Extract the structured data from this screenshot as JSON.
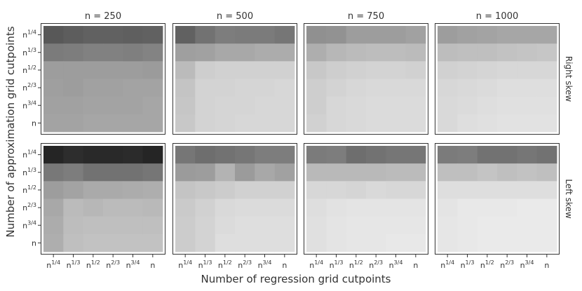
{
  "chart_data": {
    "type": "heatmap",
    "xlabel": "Number of regression grid cutpoints",
    "ylabel": "Number of approximation grid cutpoints",
    "x_ticks": [
      "n^1/4",
      "n^1/3",
      "n^1/2",
      "n^2/3",
      "n^3/4",
      "n"
    ],
    "y_ticks": [
      "n^1/4",
      "n^1/3",
      "n^1/2",
      "n^2/3",
      "n^3/4",
      "n"
    ],
    "columns": [
      "n = 250",
      "n = 500",
      "n = 750",
      "n = 1000"
    ],
    "rows": [
      "Right skew",
      "Left skew"
    ],
    "color_scale": {
      "light": "#f3f3f3",
      "dark": "#1c1c1c"
    },
    "panels": [
      {
        "column": "n = 250",
        "row": "Right skew",
        "values": [
          [
            0.72,
            0.7,
            0.68,
            0.68,
            0.69,
            0.68
          ],
          [
            0.56,
            0.55,
            0.53,
            0.53,
            0.54,
            0.52
          ],
          [
            0.4,
            0.4,
            0.4,
            0.4,
            0.4,
            0.41
          ],
          [
            0.39,
            0.4,
            0.38,
            0.38,
            0.37,
            0.37
          ],
          [
            0.38,
            0.38,
            0.37,
            0.37,
            0.37,
            0.36
          ],
          [
            0.37,
            0.37,
            0.36,
            0.36,
            0.36,
            0.36
          ]
        ]
      },
      {
        "column": "n = 500",
        "row": "Right skew",
        "values": [
          [
            0.68,
            0.6,
            0.55,
            0.56,
            0.56,
            0.58
          ],
          [
            0.39,
            0.38,
            0.35,
            0.35,
            0.33,
            0.33
          ],
          [
            0.26,
            0.17,
            0.16,
            0.16,
            0.16,
            0.16
          ],
          [
            0.22,
            0.15,
            0.15,
            0.14,
            0.14,
            0.13
          ],
          [
            0.21,
            0.15,
            0.14,
            0.14,
            0.13,
            0.13
          ],
          [
            0.2,
            0.15,
            0.14,
            0.13,
            0.13,
            0.13
          ]
        ]
      },
      {
        "column": "n = 750",
        "row": "Right skew",
        "values": [
          [
            0.46,
            0.45,
            0.4,
            0.4,
            0.4,
            0.38
          ],
          [
            0.32,
            0.28,
            0.26,
            0.25,
            0.25,
            0.26
          ],
          [
            0.2,
            0.17,
            0.16,
            0.15,
            0.15,
            0.16
          ],
          [
            0.17,
            0.15,
            0.13,
            0.12,
            0.12,
            0.12
          ],
          [
            0.17,
            0.13,
            0.12,
            0.11,
            0.11,
            0.11
          ],
          [
            0.16,
            0.13,
            0.12,
            0.11,
            0.11,
            0.11
          ]
        ]
      },
      {
        "column": "n = 1000",
        "row": "Right skew",
        "values": [
          [
            0.4,
            0.38,
            0.37,
            0.36,
            0.36,
            0.36
          ],
          [
            0.25,
            0.24,
            0.24,
            0.23,
            0.22,
            0.21
          ],
          [
            0.16,
            0.15,
            0.14,
            0.13,
            0.13,
            0.13
          ],
          [
            0.13,
            0.12,
            0.11,
            0.1,
            0.1,
            0.1
          ],
          [
            0.12,
            0.11,
            0.1,
            0.09,
            0.09,
            0.09
          ],
          [
            0.12,
            0.1,
            0.09,
            0.08,
            0.08,
            0.08
          ]
        ]
      },
      {
        "column": "n = 250",
        "row": "Left skew",
        "values": [
          [
            0.96,
            0.92,
            0.94,
            0.94,
            0.93,
            0.96
          ],
          [
            0.57,
            0.55,
            0.6,
            0.6,
            0.6,
            0.58
          ],
          [
            0.4,
            0.37,
            0.34,
            0.34,
            0.33,
            0.32
          ],
          [
            0.35,
            0.26,
            0.28,
            0.26,
            0.26,
            0.27
          ],
          [
            0.33,
            0.25,
            0.24,
            0.24,
            0.24,
            0.24
          ],
          [
            0.32,
            0.24,
            0.23,
            0.23,
            0.23,
            0.23
          ]
        ]
      },
      {
        "column": "n = 500",
        "row": "Left skew",
        "values": [
          [
            0.58,
            0.62,
            0.6,
            0.58,
            0.55,
            0.55
          ],
          [
            0.41,
            0.4,
            0.3,
            0.41,
            0.35,
            0.38
          ],
          [
            0.22,
            0.2,
            0.18,
            0.16,
            0.16,
            0.16
          ],
          [
            0.19,
            0.16,
            0.12,
            0.11,
            0.11,
            0.11
          ],
          [
            0.18,
            0.15,
            0.11,
            0.1,
            0.1,
            0.1
          ],
          [
            0.18,
            0.15,
            0.1,
            0.1,
            0.1,
            0.1
          ]
        ]
      },
      {
        "column": "n = 750",
        "row": "Left skew",
        "values": [
          [
            0.56,
            0.55,
            0.62,
            0.6,
            0.58,
            0.58
          ],
          [
            0.27,
            0.27,
            0.27,
            0.27,
            0.26,
            0.26
          ],
          [
            0.13,
            0.13,
            0.14,
            0.12,
            0.13,
            0.13
          ],
          [
            0.1,
            0.08,
            0.07,
            0.07,
            0.07,
            0.07
          ],
          [
            0.09,
            0.07,
            0.06,
            0.06,
            0.06,
            0.06
          ],
          [
            0.09,
            0.07,
            0.06,
            0.06,
            0.05,
            0.05
          ]
        ]
      },
      {
        "column": "n = 1000",
        "row": "Left skew",
        "values": [
          [
            0.56,
            0.55,
            0.6,
            0.6,
            0.58,
            0.6
          ],
          [
            0.24,
            0.24,
            0.22,
            0.24,
            0.23,
            0.24
          ],
          [
            0.1,
            0.1,
            0.1,
            0.1,
            0.1,
            0.1
          ],
          [
            0.07,
            0.05,
            0.05,
            0.05,
            0.04,
            0.04
          ],
          [
            0.06,
            0.05,
            0.04,
            0.04,
            0.04,
            0.04
          ],
          [
            0.06,
            0.05,
            0.04,
            0.04,
            0.04,
            0.04
          ]
        ]
      }
    ]
  }
}
